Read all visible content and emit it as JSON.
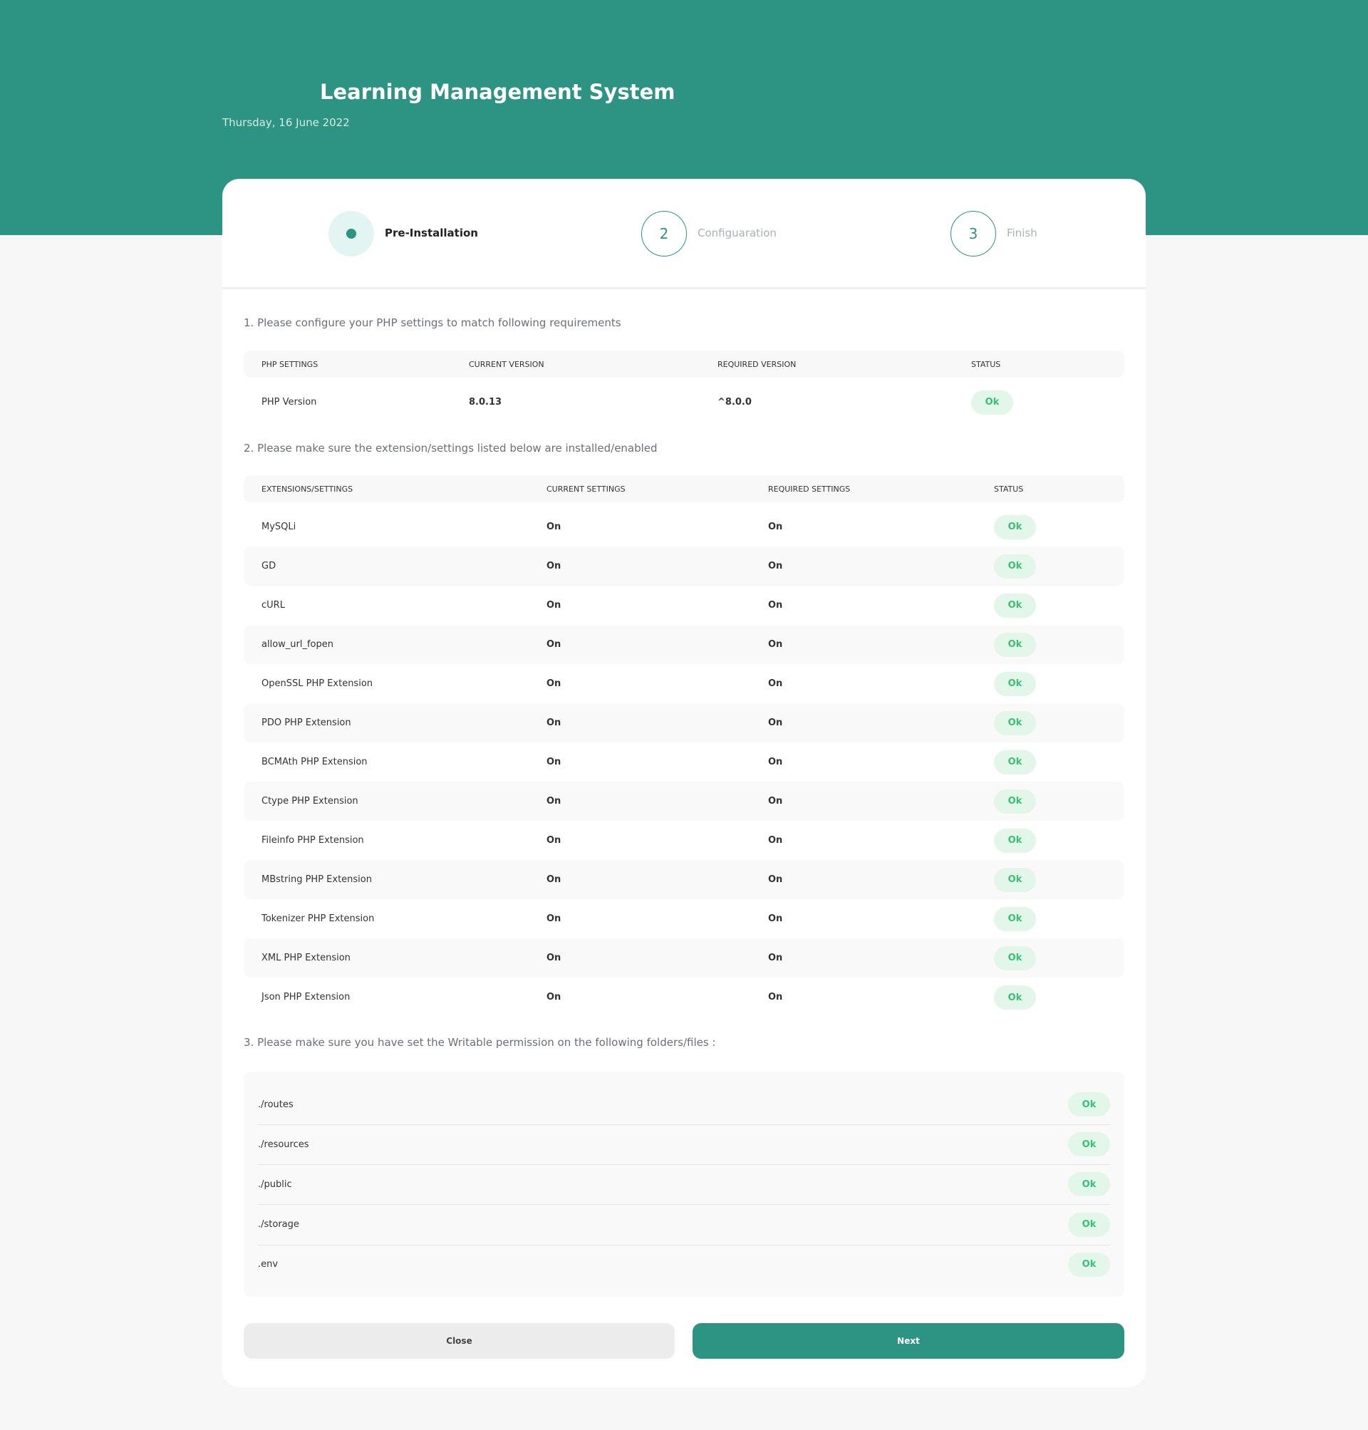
{
  "header": {
    "title": "Learning Management System",
    "date": "Thursday, 16 June 2022"
  },
  "steps": [
    {
      "label": "Pre-Installation"
    },
    {
      "number": 2,
      "label": "Configuaration"
    },
    {
      "number": 3,
      "label": "Finish"
    }
  ],
  "php": {
    "heading": "1. Please configure your PHP settings to match following requirements",
    "columns": [
      "PHP SETTINGS",
      "CURRENT VERSION",
      "REQUIRED VERSION",
      "STATUS"
    ],
    "rows": [
      [
        "PHP Version",
        "8.0.13",
        "^8.0.0",
        "Ok"
      ]
    ]
  },
  "extensions": {
    "heading": "2. Please make sure the extension/settings listed below are installed/enabled",
    "columns": [
      "EXTENSIONS/SETTINGS",
      "CURRENT SETTINGS",
      "REQUIRED SETTINGS",
      "STATUS"
    ],
    "rows": [
      [
        "MySQLi",
        "On",
        "On",
        "Ok"
      ],
      [
        "GD",
        "On",
        "On",
        "Ok"
      ],
      [
        "cURL",
        "On",
        "On",
        "Ok"
      ],
      [
        "allow_url_fopen",
        "On",
        "On",
        "Ok"
      ],
      [
        "OpenSSL PHP Extension",
        "On",
        "On",
        "Ok"
      ],
      [
        "PDO PHP Extension",
        "On",
        "On",
        "Ok"
      ],
      [
        "BCMAth PHP Extension",
        "On",
        "On",
        "Ok"
      ],
      [
        "Ctype PHP Extension",
        "On",
        "On",
        "Ok"
      ],
      [
        "Fileinfo PHP Extension",
        "On",
        "On",
        "Ok"
      ],
      [
        "MBstring PHP Extension",
        "On",
        "On",
        "Ok"
      ],
      [
        "Tokenizer PHP Extension",
        "On",
        "On",
        "Ok"
      ],
      [
        "XML PHP Extension",
        "On",
        "On",
        "Ok"
      ],
      [
        "Json PHP Extension",
        "On",
        "On",
        "Ok"
      ]
    ]
  },
  "folders": {
    "heading": "3. Please make sure you have set the Writable permission on the following folders/files :",
    "items": [
      [
        "./routes",
        "Ok"
      ],
      [
        "./resources",
        "Ok"
      ],
      [
        "./public",
        "Ok"
      ],
      [
        "./storage",
        "Ok"
      ],
      [
        ".env",
        "Ok"
      ]
    ]
  },
  "buttons": {
    "close": "Close",
    "next": "Next"
  }
}
